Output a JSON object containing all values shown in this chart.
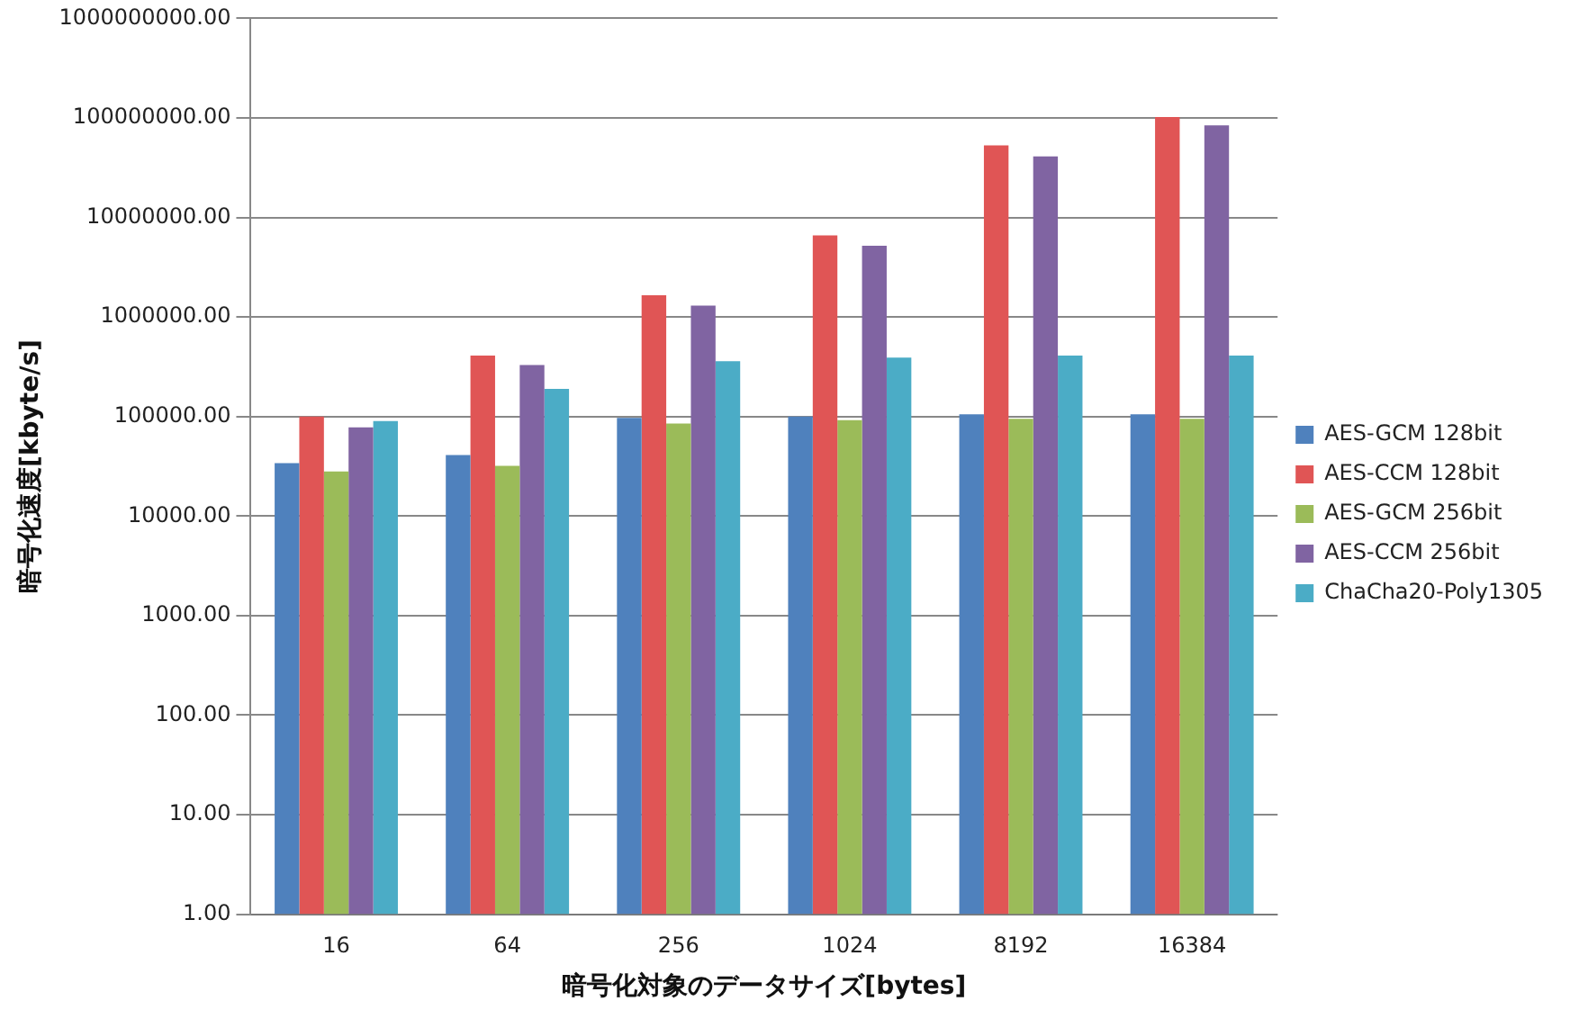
{
  "chart_data": {
    "type": "bar",
    "xlabel": "暗号化対象のデータサイズ[bytes]",
    "ylabel": "暗号化速度[kbyte/s]",
    "categories": [
      "16",
      "64",
      "256",
      "1024",
      "8192",
      "16384"
    ],
    "series": [
      {
        "name": "AES-GCM 128bit",
        "color": "#4f81bd",
        "values": [
          34000,
          41000,
          97000,
          100000,
          105000,
          105000
        ]
      },
      {
        "name": "AES-CCM 128bit",
        "color": "#e05555",
        "values": [
          100000,
          410000,
          1650000,
          6600000,
          53000000,
          102000000
        ]
      },
      {
        "name": "AES-GCM 256bit",
        "color": "#9bbb59",
        "values": [
          28000,
          32000,
          85000,
          92000,
          95000,
          95000
        ]
      },
      {
        "name": "AES-CCM 256bit",
        "color": "#8064a2",
        "values": [
          78000,
          330000,
          1300000,
          5200000,
          41000000,
          84000000
        ]
      },
      {
        "name": "ChaCha20-Poly1305",
        "color": "#4bacc6",
        "values": [
          90000,
          190000,
          360000,
          390000,
          410000,
          410000
        ]
      }
    ],
    "log": "y",
    "ylim": [
      1,
      1000000000
    ],
    "yticks": [
      {
        "value": 1,
        "label": "1.00"
      },
      {
        "value": 10,
        "label": "10.00"
      },
      {
        "value": 100,
        "label": "100.00"
      },
      {
        "value": 1000,
        "label": "1000.00"
      },
      {
        "value": 10000,
        "label": "10000.00"
      },
      {
        "value": 100000,
        "label": "100000.00"
      },
      {
        "value": 1000000,
        "label": "1000000.00"
      },
      {
        "value": 10000000,
        "label": "10000000.00"
      },
      {
        "value": 100000000,
        "label": "100000000.00"
      },
      {
        "value": 1000000000,
        "label": "1000000000.00"
      }
    ],
    "grid": "y",
    "legend": "right"
  }
}
